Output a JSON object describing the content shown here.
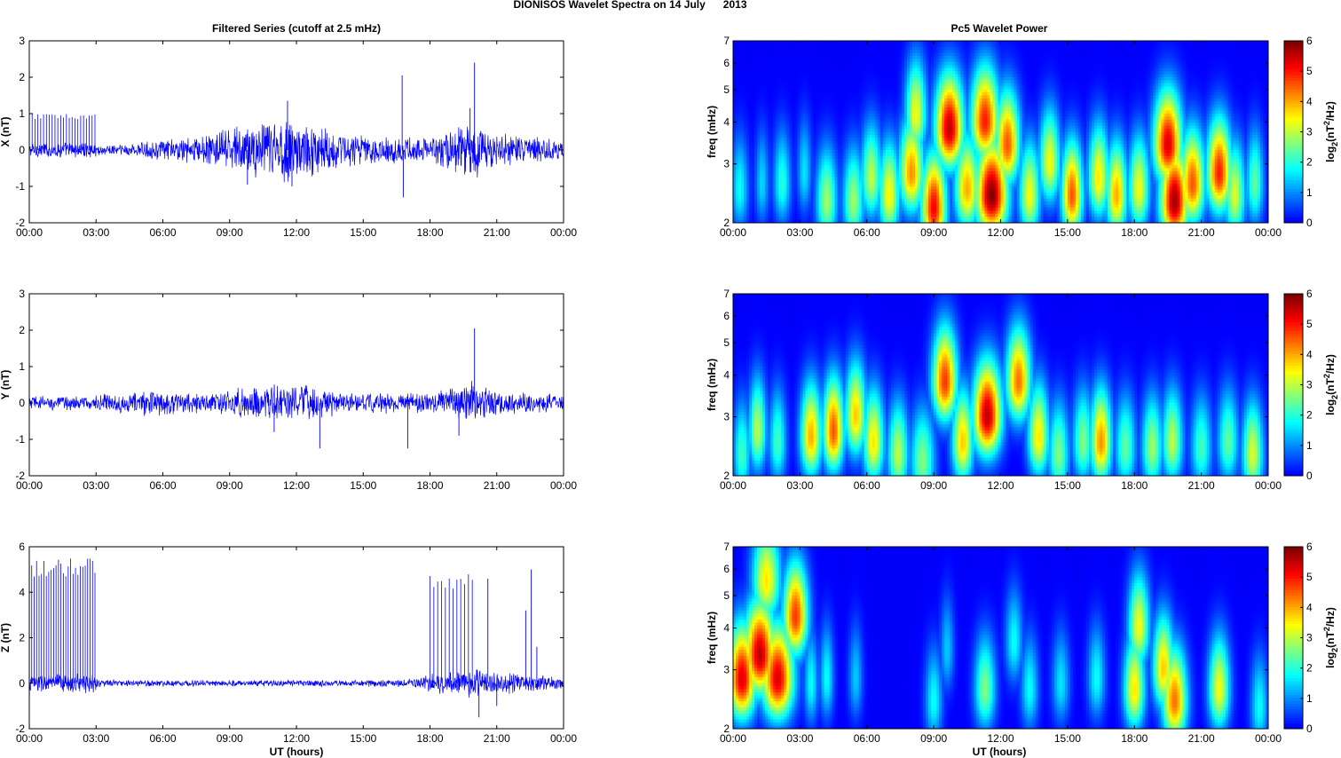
{
  "figure": {
    "title": "DIONISOS Wavelet Spectra on 14 July      2013",
    "left_column_title": "Filtered Series (cutoff at 2.5 mHz)",
    "right_column_title": "Pc5 Wavelet Power",
    "xlabel": "UT (hours)"
  },
  "colors": {
    "trace": "#0000ff",
    "axes": "#000000",
    "background": "#ffffff",
    "colormap": "jet"
  },
  "chart_data": [
    {
      "type": "line",
      "panel": "X",
      "ylabel": "X (nT)",
      "x_ticks": [
        "00:00",
        "03:00",
        "06:00",
        "09:00",
        "12:00",
        "15:00",
        "18:00",
        "21:00",
        "00:00"
      ],
      "xlim_hours": [
        0,
        24
      ],
      "ylim": [
        -2,
        3
      ],
      "y_ticks": [
        -2,
        -1,
        0,
        1,
        2,
        3
      ],
      "envelope": {
        "x_hours": [
          0,
          1,
          2,
          2.9,
          3.1,
          4,
          5,
          6,
          7,
          8,
          9,
          10,
          11,
          11.5,
          12,
          13,
          14,
          15,
          16,
          16.7,
          17,
          18,
          19,
          19.5,
          20,
          20.5,
          21,
          22,
          23,
          24
        ],
        "amplitude": [
          0.15,
          0.15,
          0.15,
          0.15,
          0.12,
          0.12,
          0.15,
          0.2,
          0.25,
          0.3,
          0.45,
          0.55,
          0.6,
          0.75,
          0.55,
          0.5,
          0.35,
          0.3,
          0.25,
          0.3,
          0.25,
          0.25,
          0.45,
          0.7,
          0.65,
          0.45,
          0.3,
          0.3,
          0.25,
          0.2
        ]
      },
      "spikes": [
        {
          "x": 16.75,
          "y": 2.05
        },
        {
          "x": 16.8,
          "y": -1.3
        },
        {
          "x": 20.0,
          "y": 2.4
        },
        {
          "x": 19.8,
          "y": 1.15
        },
        {
          "x": 11.6,
          "y": 1.35
        },
        {
          "x": 9.8,
          "y": -0.95
        },
        {
          "x": 11.8,
          "y": -1.0
        }
      ],
      "spike_train": {
        "x_start": 0.0,
        "x_end": 2.95,
        "count": 24,
        "y": 1.0
      }
    },
    {
      "type": "line",
      "panel": "Y",
      "ylabel": "Y (nT)",
      "x_ticks": [
        "00:00",
        "03:00",
        "06:00",
        "09:00",
        "12:00",
        "15:00",
        "18:00",
        "21:00",
        "00:00"
      ],
      "xlim_hours": [
        0,
        24
      ],
      "ylim": [
        -2,
        3
      ],
      "y_ticks": [
        -2,
        -1,
        0,
        1,
        2,
        3
      ],
      "envelope": {
        "x_hours": [
          0,
          2,
          3,
          4,
          5,
          6,
          7,
          8,
          9,
          10,
          11,
          12,
          13,
          14,
          15,
          16,
          17,
          18,
          19,
          20,
          21,
          22,
          23,
          24
        ],
        "amplitude": [
          0.15,
          0.15,
          0.15,
          0.2,
          0.25,
          0.25,
          0.2,
          0.2,
          0.25,
          0.35,
          0.4,
          0.35,
          0.35,
          0.2,
          0.2,
          0.2,
          0.2,
          0.2,
          0.35,
          0.45,
          0.25,
          0.2,
          0.2,
          0.2
        ]
      },
      "spikes": [
        {
          "x": 13.05,
          "y": -1.25
        },
        {
          "x": 17.0,
          "y": -1.25
        },
        {
          "x": 20.0,
          "y": 2.05
        },
        {
          "x": 19.3,
          "y": -0.9
        },
        {
          "x": 24.0,
          "y": -0.7
        },
        {
          "x": 11.0,
          "y": -0.8
        }
      ],
      "spike_train": null
    },
    {
      "type": "line",
      "panel": "Z",
      "ylabel": "Z (nT)",
      "x_ticks": [
        "00:00",
        "03:00",
        "06:00",
        "09:00",
        "12:00",
        "15:00",
        "18:00",
        "21:00",
        "00:00"
      ],
      "xlim_hours": [
        0,
        24
      ],
      "ylim": [
        -2,
        6
      ],
      "y_ticks": [
        -2,
        0,
        2,
        4,
        6
      ],
      "envelope": {
        "x_hours": [
          0,
          1,
          2,
          2.9,
          3.1,
          5,
          8,
          11,
          14,
          17,
          18,
          19,
          20,
          21,
          22,
          23,
          24
        ],
        "amplitude": [
          0.3,
          0.3,
          0.3,
          0.3,
          0.12,
          0.1,
          0.1,
          0.1,
          0.1,
          0.12,
          0.3,
          0.4,
          0.45,
          0.35,
          0.3,
          0.25,
          0.2
        ]
      },
      "spikes": [
        {
          "x": 20.6,
          "y": 4.6
        },
        {
          "x": 22.55,
          "y": 5.0
        },
        {
          "x": 20.2,
          "y": -1.5
        },
        {
          "x": 21.0,
          "y": -1.0
        },
        {
          "x": 22.8,
          "y": 1.6
        },
        {
          "x": 22.3,
          "y": 3.2
        }
      ],
      "spike_train": {
        "x_start": 0.0,
        "x_end": 2.95,
        "count": 28,
        "y": 5.5
      },
      "spike_train_2": {
        "x_start": 18.0,
        "x_end": 19.9,
        "count": 12,
        "y": 4.8
      }
    },
    {
      "type": "heatmap",
      "panel": "X",
      "ylabel": "freq (mHz)",
      "cbar_label": "log2(nT2/Hz)",
      "y_ticks": [
        2,
        3,
        4,
        5,
        6,
        7
      ],
      "ylim": [
        2,
        7
      ],
      "y_scale": "log",
      "clim": [
        0,
        6
      ],
      "cbar_ticks": [
        0,
        1,
        2,
        3,
        4,
        5,
        6
      ],
      "x_ticks": [
        "00:00",
        "03:00",
        "06:00",
        "09:00",
        "12:00",
        "15:00",
        "18:00",
        "21:00",
        "00:00"
      ],
      "xlim_hours": [
        0,
        24
      ],
      "blobs": [
        {
          "t": 0.3,
          "f": 2.5,
          "p": 1.8,
          "w": 0.25
        },
        {
          "t": 1.3,
          "f": 2.6,
          "p": 1.5,
          "w": 0.2
        },
        {
          "t": 2.2,
          "f": 2.6,
          "p": 2.0,
          "w": 0.25
        },
        {
          "t": 3.2,
          "f": 2.8,
          "p": 1.6,
          "w": 0.2
        },
        {
          "t": 4.2,
          "f": 2.3,
          "p": 2.8,
          "w": 0.3
        },
        {
          "t": 5.4,
          "f": 2.3,
          "p": 2.8,
          "w": 0.3
        },
        {
          "t": 6.2,
          "f": 2.7,
          "p": 3.0,
          "w": 0.3
        },
        {
          "t": 7.0,
          "f": 2.4,
          "p": 3.5,
          "w": 0.3
        },
        {
          "t": 8.0,
          "f": 2.8,
          "p": 4.2,
          "w": 0.35
        },
        {
          "t": 8.2,
          "f": 4.2,
          "p": 3.4,
          "w": 0.3
        },
        {
          "t": 9.0,
          "f": 2.2,
          "p": 5.2,
          "w": 0.35
        },
        {
          "t": 9.7,
          "f": 3.8,
          "p": 5.6,
          "w": 0.4
        },
        {
          "t": 10.5,
          "f": 2.5,
          "p": 4.0,
          "w": 0.35
        },
        {
          "t": 11.3,
          "f": 4.0,
          "p": 5.0,
          "w": 0.4
        },
        {
          "t": 11.6,
          "f": 2.4,
          "p": 6.0,
          "w": 0.45
        },
        {
          "t": 12.3,
          "f": 3.4,
          "p": 4.6,
          "w": 0.35
        },
        {
          "t": 13.3,
          "f": 2.4,
          "p": 3.4,
          "w": 0.3
        },
        {
          "t": 14.2,
          "f": 3.0,
          "p": 3.4,
          "w": 0.3
        },
        {
          "t": 15.2,
          "f": 2.4,
          "p": 4.6,
          "w": 0.3
        },
        {
          "t": 16.4,
          "f": 2.7,
          "p": 3.6,
          "w": 0.3
        },
        {
          "t": 17.2,
          "f": 2.4,
          "p": 4.0,
          "w": 0.3
        },
        {
          "t": 18.2,
          "f": 2.5,
          "p": 3.4,
          "w": 0.3
        },
        {
          "t": 19.5,
          "f": 3.4,
          "p": 5.4,
          "w": 0.4
        },
        {
          "t": 19.8,
          "f": 2.3,
          "p": 5.8,
          "w": 0.4
        },
        {
          "t": 20.6,
          "f": 2.6,
          "p": 4.6,
          "w": 0.35
        },
        {
          "t": 21.8,
          "f": 2.8,
          "p": 5.0,
          "w": 0.35
        },
        {
          "t": 22.5,
          "f": 2.4,
          "p": 3.2,
          "w": 0.3
        },
        {
          "t": 23.4,
          "f": 2.6,
          "p": 2.4,
          "w": 0.25
        }
      ]
    },
    {
      "type": "heatmap",
      "panel": "Y",
      "ylabel": "freq (mHz)",
      "cbar_label": "log2(nT2/Hz)",
      "y_ticks": [
        2,
        3,
        4,
        5,
        6,
        7
      ],
      "ylim": [
        2,
        7
      ],
      "y_scale": "log",
      "clim": [
        0,
        6
      ],
      "cbar_ticks": [
        0,
        1,
        2,
        3,
        4,
        5,
        6
      ],
      "x_ticks": [
        "00:00",
        "03:00",
        "06:00",
        "09:00",
        "12:00",
        "15:00",
        "18:00",
        "21:00",
        "00:00"
      ],
      "xlim_hours": [
        0,
        24
      ],
      "blobs": [
        {
          "t": 0.4,
          "f": 2.3,
          "p": 2.2,
          "w": 0.25
        },
        {
          "t": 1.1,
          "f": 2.7,
          "p": 3.0,
          "w": 0.25
        },
        {
          "t": 2.0,
          "f": 2.5,
          "p": 2.2,
          "w": 0.25
        },
        {
          "t": 3.5,
          "f": 2.6,
          "p": 4.0,
          "w": 0.3
        },
        {
          "t": 4.5,
          "f": 2.7,
          "p": 4.6,
          "w": 0.3
        },
        {
          "t": 5.5,
          "f": 3.0,
          "p": 3.8,
          "w": 0.3
        },
        {
          "t": 6.3,
          "f": 2.5,
          "p": 3.6,
          "w": 0.3
        },
        {
          "t": 7.4,
          "f": 2.3,
          "p": 3.0,
          "w": 0.3
        },
        {
          "t": 8.5,
          "f": 2.2,
          "p": 2.6,
          "w": 0.35
        },
        {
          "t": 9.5,
          "f": 3.8,
          "p": 4.8,
          "w": 0.35
        },
        {
          "t": 10.3,
          "f": 2.5,
          "p": 3.8,
          "w": 0.3
        },
        {
          "t": 11.4,
          "f": 3.0,
          "p": 5.6,
          "w": 0.4
        },
        {
          "t": 12.8,
          "f": 3.8,
          "p": 4.4,
          "w": 0.35
        },
        {
          "t": 13.7,
          "f": 2.6,
          "p": 3.6,
          "w": 0.3
        },
        {
          "t": 14.6,
          "f": 2.3,
          "p": 2.6,
          "w": 0.3
        },
        {
          "t": 15.7,
          "f": 2.5,
          "p": 2.6,
          "w": 0.3
        },
        {
          "t": 16.5,
          "f": 2.5,
          "p": 4.2,
          "w": 0.3
        },
        {
          "t": 17.6,
          "f": 2.4,
          "p": 2.4,
          "w": 0.3
        },
        {
          "t": 18.8,
          "f": 2.4,
          "p": 2.8,
          "w": 0.3
        },
        {
          "t": 19.7,
          "f": 2.5,
          "p": 3.0,
          "w": 0.3
        },
        {
          "t": 21.0,
          "f": 2.4,
          "p": 2.2,
          "w": 0.3
        },
        {
          "t": 22.2,
          "f": 2.5,
          "p": 2.4,
          "w": 0.3
        },
        {
          "t": 23.3,
          "f": 2.3,
          "p": 3.2,
          "w": 0.3
        }
      ]
    },
    {
      "type": "heatmap",
      "panel": "Z",
      "ylabel": "freq (mHz)",
      "cbar_label": "log2(nT2/Hz)",
      "y_ticks": [
        2,
        3,
        4,
        5,
        6,
        7
      ],
      "ylim": [
        2,
        7
      ],
      "y_scale": "log",
      "clim": [
        0,
        6
      ],
      "cbar_ticks": [
        0,
        1,
        2,
        3,
        4,
        5,
        6
      ],
      "x_ticks": [
        "00:00",
        "03:00",
        "06:00",
        "09:00",
        "12:00",
        "15:00",
        "18:00",
        "21:00",
        "00:00"
      ],
      "xlim_hours": [
        0,
        24
      ],
      "blobs": [
        {
          "t": 0.4,
          "f": 2.8,
          "p": 5.4,
          "w": 0.4
        },
        {
          "t": 1.2,
          "f": 3.3,
          "p": 5.6,
          "w": 0.45
        },
        {
          "t": 2.0,
          "f": 2.8,
          "p": 5.4,
          "w": 0.45
        },
        {
          "t": 2.8,
          "f": 4.3,
          "p": 4.8,
          "w": 0.35
        },
        {
          "t": 1.5,
          "f": 5.5,
          "p": 3.6,
          "w": 0.4
        },
        {
          "t": 3.5,
          "f": 2.7,
          "p": 1.8,
          "w": 0.2
        },
        {
          "t": 4.2,
          "f": 2.8,
          "p": 1.8,
          "w": 0.2
        },
        {
          "t": 5.5,
          "f": 2.8,
          "p": 1.4,
          "w": 0.2
        },
        {
          "t": 9.0,
          "f": 2.4,
          "p": 1.8,
          "w": 0.25
        },
        {
          "t": 9.6,
          "f": 3.4,
          "p": 1.4,
          "w": 0.2
        },
        {
          "t": 11.3,
          "f": 2.6,
          "p": 2.6,
          "w": 0.3
        },
        {
          "t": 12.6,
          "f": 3.6,
          "p": 1.8,
          "w": 0.25
        },
        {
          "t": 13.3,
          "f": 2.6,
          "p": 1.8,
          "w": 0.25
        },
        {
          "t": 14.7,
          "f": 2.7,
          "p": 1.6,
          "w": 0.25
        },
        {
          "t": 16.3,
          "f": 2.8,
          "p": 1.8,
          "w": 0.25
        },
        {
          "t": 18.0,
          "f": 2.6,
          "p": 3.6,
          "w": 0.3
        },
        {
          "t": 18.2,
          "f": 4.0,
          "p": 3.4,
          "w": 0.3
        },
        {
          "t": 19.3,
          "f": 3.0,
          "p": 3.8,
          "w": 0.3
        },
        {
          "t": 19.8,
          "f": 2.4,
          "p": 4.4,
          "w": 0.35
        },
        {
          "t": 21.8,
          "f": 2.6,
          "p": 3.4,
          "w": 0.3
        },
        {
          "t": 23.6,
          "f": 2.3,
          "p": 1.8,
          "w": 0.25
        }
      ]
    }
  ]
}
